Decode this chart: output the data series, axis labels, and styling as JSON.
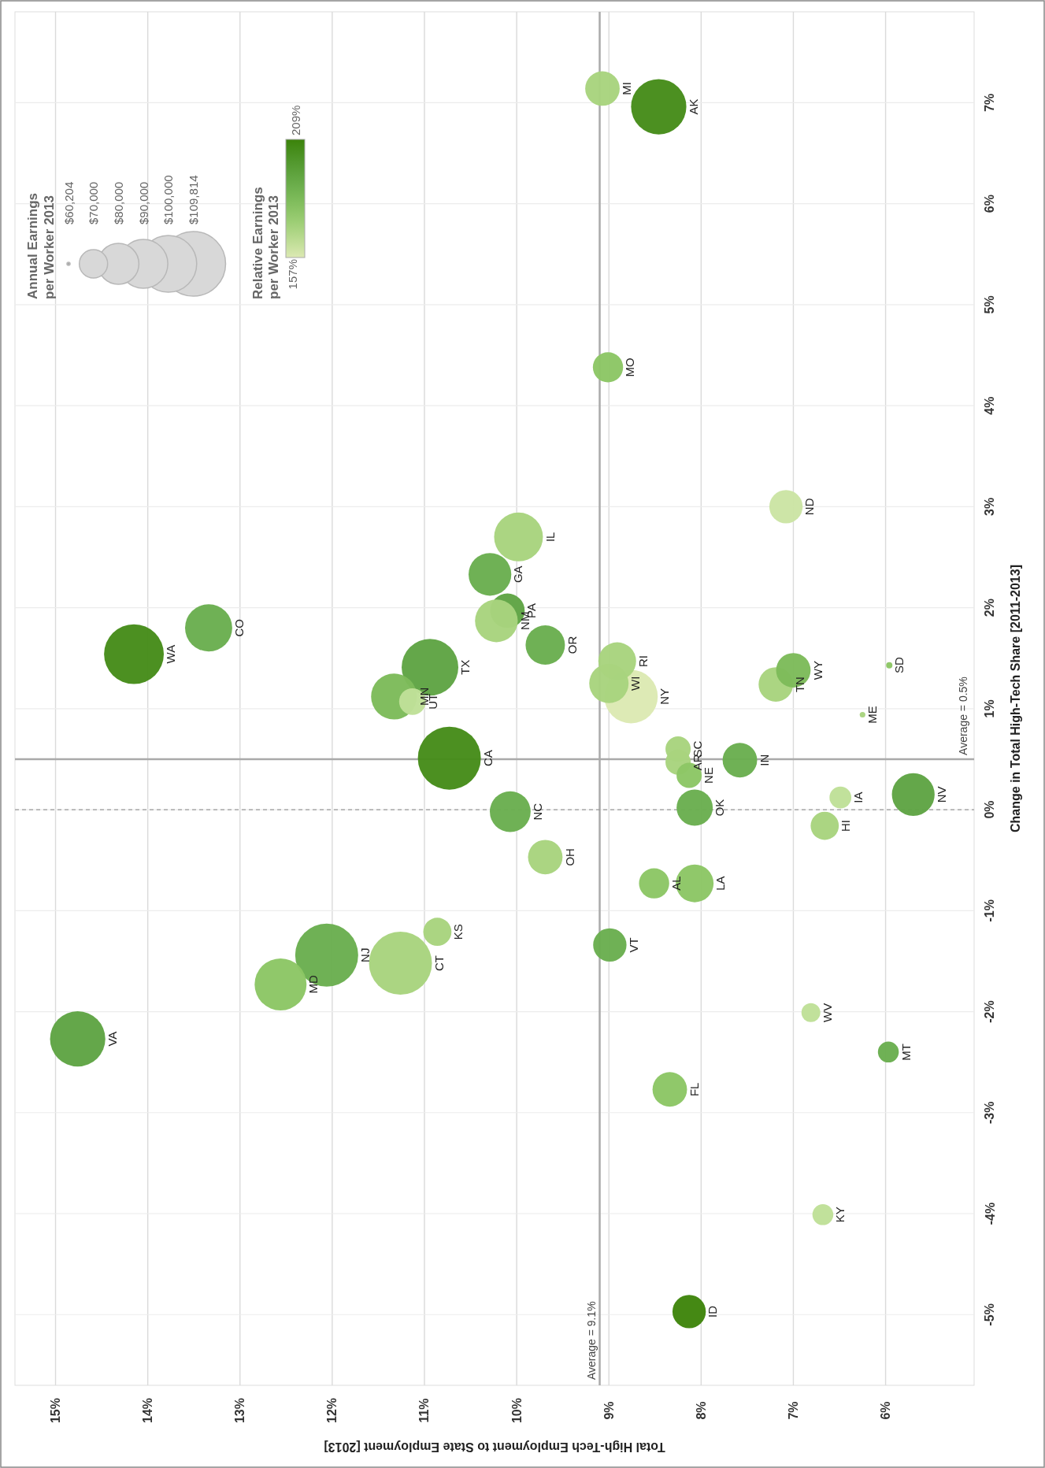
{
  "chart_data": {
    "type": "bubble",
    "xlabel": "Total High-Tech Employment to State Employment [2013]",
    "ylabel": "Change in Total High-Tech Share [2011-2013]",
    "legend_title": "Annual Earnings per Worker 2013",
    "annotations": [
      "$60,204",
      "$70,000",
      "$80,000",
      "$90,000",
      "$100,000",
      "$109,814",
      "Relative Earnings per Worker 2013",
      "157%",
      "209%"
    ],
    "xlim": [
      15.44,
      5.04
    ],
    "ylim": [
      -5.7,
      7.9
    ],
    "xticks": [
      {
        "value": 15,
        "label": "15%"
      },
      {
        "value": 14,
        "label": "14%"
      },
      {
        "value": 13,
        "label": "13%"
      },
      {
        "value": 12,
        "label": "12%"
      },
      {
        "value": 11,
        "label": "11%"
      },
      {
        "value": 10,
        "label": "10%"
      },
      {
        "value": 9,
        "label": "9%"
      },
      {
        "value": 8,
        "label": "8%"
      },
      {
        "value": 7,
        "label": "7%"
      },
      {
        "value": 6,
        "label": "6%"
      }
    ],
    "yticks": [
      {
        "value": -5,
        "label": "-5%"
      },
      {
        "value": -4,
        "label": "-4%"
      },
      {
        "value": -3,
        "label": "-3%"
      },
      {
        "value": -2,
        "label": "-2%"
      },
      {
        "value": -1,
        "label": "-1%"
      },
      {
        "value": 0,
        "label": "0%"
      },
      {
        "value": 1,
        "label": "1%"
      },
      {
        "value": 2,
        "label": "2%"
      },
      {
        "value": 3,
        "label": "3%"
      },
      {
        "value": 4,
        "label": "4%"
      },
      {
        "value": 5,
        "label": "5%"
      },
      {
        "value": 6,
        "label": "6%"
      },
      {
        "value": 7,
        "label": "7%"
      }
    ],
    "grid": true,
    "ref_lines": [
      {
        "axis": "x",
        "value": 9.1,
        "label": "Average = 9.1%",
        "color": "#aaaaaa",
        "line_style": "solid"
      },
      {
        "axis": "y",
        "value": 0.5,
        "label": "Average = 0.5%",
        "color": "#aaaaaa",
        "line_style": "solid"
      },
      {
        "axis": "y",
        "value": 0,
        "color": "#999999",
        "line_style": "dashed"
      }
    ],
    "series": [
      {
        "name": "CA",
        "x": [
          10.73
        ],
        "values": [
          0.51
        ],
        "sizes": [
          1
        ],
        "color": "#468c1a"
      },
      {
        "name": "CT",
        "x": [
          11.26
        ],
        "values": [
          -1.52
        ],
        "sizes": [
          1
        ],
        "color": "#a8d47e"
      },
      {
        "name": "NJ",
        "x": [
          12.06
        ],
        "values": [
          -1.44
        ],
        "sizes": [
          1
        ],
        "color": "#6aae4f"
      },
      {
        "name": "WA",
        "x": [
          14.15
        ],
        "values": [
          1.54
        ],
        "sizes": [
          0.9
        ],
        "color": "#468c1a"
      },
      {
        "name": "TX",
        "x": [
          10.94
        ],
        "values": [
          1.41
        ],
        "sizes": [
          0.81
        ],
        "color": "#5fa444"
      },
      {
        "name": "AK",
        "x": [
          8.46
        ],
        "values": [
          6.96
        ],
        "sizes": [
          0.77
        ],
        "color": "#468c1a"
      },
      {
        "name": "VA",
        "x": [
          14.76
        ],
        "values": [
          -2.27
        ],
        "sizes": [
          0.77
        ],
        "color": "#5fa444"
      },
      {
        "name": "NY",
        "x": [
          8.76
        ],
        "values": [
          1.12
        ],
        "sizes": [
          0.72
        ],
        "color": "#dce9b3"
      },
      {
        "name": "MD",
        "x": [
          12.56
        ],
        "values": [
          -1.73
        ],
        "sizes": [
          0.68
        ],
        "color": "#8cc665"
      },
      {
        "name": "IL",
        "x": [
          9.98
        ],
        "values": [
          2.7
        ],
        "sizes": [
          0.6
        ],
        "color": "#a8d47e"
      },
      {
        "name": "CO",
        "x": [
          13.34
        ],
        "values": [
          1.8
        ],
        "sizes": [
          0.56
        ],
        "color": "#6aae4f"
      },
      {
        "name": "MN",
        "x": [
          11.33
        ],
        "values": [
          1.12
        ],
        "sizes": [
          0.53
        ],
        "color": "#7dbb5a"
      },
      {
        "name": "GA",
        "x": [
          10.29
        ],
        "values": [
          2.33
        ],
        "sizes": [
          0.46
        ],
        "color": "#6aae4f"
      },
      {
        "name": "PA",
        "x": [
          10.1
        ],
        "values": [
          1.97
        ],
        "sizes": [
          0.3
        ],
        "color": "#5fa444"
      },
      {
        "name": "NM",
        "x": [
          10.22
        ],
        "values": [
          1.87
        ],
        "sizes": [
          0.46
        ],
        "color": "#a8d47e"
      },
      {
        "name": "NV",
        "x": [
          5.7
        ],
        "values": [
          0.15
        ],
        "sizes": [
          0.46
        ],
        "color": "#5fa444"
      },
      {
        "name": "NC",
        "x": [
          10.07
        ],
        "values": [
          -0.02
        ],
        "sizes": [
          0.42
        ],
        "color": "#6aae4f"
      },
      {
        "name": "OR",
        "x": [
          9.69
        ],
        "values": [
          1.63
        ],
        "sizes": [
          0.39
        ],
        "color": "#6aae4f"
      },
      {
        "name": "WI",
        "x": [
          9.0
        ],
        "values": [
          1.25
        ],
        "sizes": [
          0.39
        ],
        "color": "#a8d47e"
      },
      {
        "name": "RI",
        "x": [
          8.91
        ],
        "values": [
          1.47
        ],
        "sizes": [
          0.36
        ],
        "color": "#a8d47e"
      },
      {
        "name": "LA",
        "x": [
          8.07
        ],
        "values": [
          -0.73
        ],
        "sizes": [
          0.36
        ],
        "color": "#8cc665"
      },
      {
        "name": "OK",
        "x": [
          8.07
        ],
        "values": [
          0.02
        ],
        "sizes": [
          0.33
        ],
        "color": "#6aae4f"
      },
      {
        "name": "MI",
        "x": [
          9.07
        ],
        "values": [
          7.14
        ],
        "sizes": [
          0.3
        ],
        "color": "#a8d47e"
      },
      {
        "name": "OH",
        "x": [
          9.69
        ],
        "values": [
          -0.47
        ],
        "sizes": [
          0.3
        ],
        "color": "#a8d47e"
      },
      {
        "name": "IN",
        "x": [
          7.58
        ],
        "values": [
          0.49
        ],
        "sizes": [
          0.3
        ],
        "color": "#6aae4f"
      },
      {
        "name": "FL",
        "x": [
          8.34
        ],
        "values": [
          -2.77
        ],
        "sizes": [
          0.3
        ],
        "color": "#8cc665"
      },
      {
        "name": "TN",
        "x": [
          7.19
        ],
        "values": [
          1.24
        ],
        "sizes": [
          0.3
        ],
        "color": "#a8d47e"
      },
      {
        "name": "WY",
        "x": [
          7.0
        ],
        "values": [
          1.38
        ],
        "sizes": [
          0.3
        ],
        "color": "#7dbb5a"
      },
      {
        "name": "ND",
        "x": [
          7.08
        ],
        "values": [
          3.0
        ],
        "sizes": [
          0.28
        ],
        "color": "#cbe4a4"
      },
      {
        "name": "VT",
        "x": [
          8.99
        ],
        "values": [
          -1.34
        ],
        "sizes": [
          0.28
        ],
        "color": "#6aae4f"
      },
      {
        "name": "ID",
        "x": [
          8.13
        ],
        "values": [
          -4.97
        ],
        "sizes": [
          0.28
        ],
        "color": "#3f850c"
      },
      {
        "name": "MO",
        "x": [
          9.01
        ],
        "values": [
          4.38
        ],
        "sizes": [
          0.23
        ],
        "color": "#8cc665"
      },
      {
        "name": "AL",
        "x": [
          8.51
        ],
        "values": [
          -0.73
        ],
        "sizes": [
          0.23
        ],
        "color": "#8cc665"
      },
      {
        "name": "KS",
        "x": [
          10.86
        ],
        "values": [
          -1.21
        ],
        "sizes": [
          0.2
        ],
        "color": "#a8d47e"
      },
      {
        "name": "HI",
        "x": [
          6.66
        ],
        "values": [
          -0.16
        ],
        "sizes": [
          0.2
        ],
        "color": "#a8d47e"
      },
      {
        "name": "UT",
        "x": [
          11.13
        ],
        "values": [
          1.07
        ],
        "sizes": [
          0.18
        ],
        "color": "#bfe098"
      },
      {
        "name": "SC",
        "x": [
          8.25
        ],
        "values": [
          0.6
        ],
        "sizes": [
          0.16
        ],
        "color": "#a8d47e"
      },
      {
        "name": "AR",
        "x": [
          8.25
        ],
        "values": [
          0.47
        ],
        "sizes": [
          0.16
        ],
        "color": "#a8d47e"
      },
      {
        "name": "NE",
        "x": [
          8.13
        ],
        "values": [
          0.34
        ],
        "sizes": [
          0.16
        ],
        "color": "#8cc665"
      },
      {
        "name": "IA",
        "x": [
          6.49
        ],
        "values": [
          0.12
        ],
        "sizes": [
          0.12
        ],
        "color": "#bfe098"
      },
      {
        "name": "MT",
        "x": [
          5.97
        ],
        "values": [
          -2.4
        ],
        "sizes": [
          0.11
        ],
        "color": "#6aae4f"
      },
      {
        "name": "KY",
        "x": [
          6.68
        ],
        "values": [
          -4.01
        ],
        "sizes": [
          0.11
        ],
        "color": "#bfe098"
      },
      {
        "name": "WV",
        "x": [
          6.81
        ],
        "values": [
          -2.01
        ],
        "sizes": [
          0.09
        ],
        "color": "#bfe098"
      },
      {
        "name": "SD",
        "x": [
          5.96
        ],
        "values": [
          1.43
        ],
        "sizes": [
          0.01
        ],
        "color": "#8cc665"
      },
      {
        "name": "ME",
        "x": [
          6.25
        ],
        "values": [
          0.94
        ],
        "sizes": [
          0.008
        ],
        "color": "#a8d47e"
      }
    ]
  }
}
